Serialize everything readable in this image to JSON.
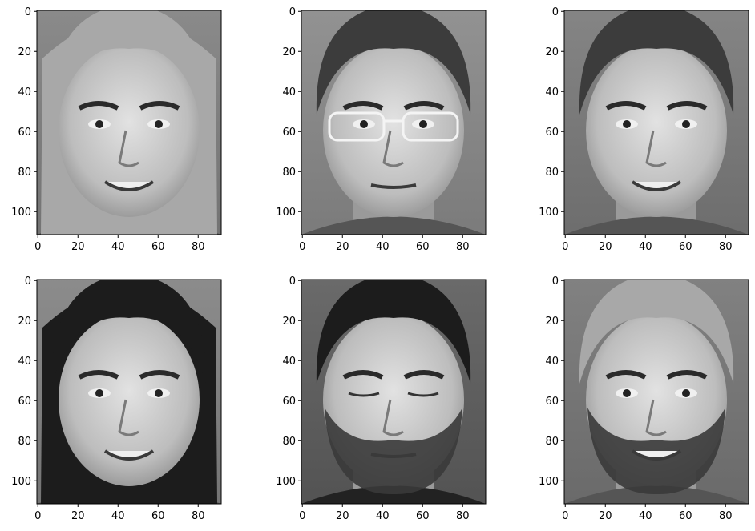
{
  "figure": {
    "panels": [
      {
        "id": "face-1",
        "hair": "long-light",
        "glasses": false,
        "beard": false,
        "smile": true,
        "eyes": "open",
        "tone": "#7a7a7a"
      },
      {
        "id": "face-2",
        "hair": "short-curly",
        "glasses": true,
        "beard": false,
        "smile": false,
        "eyes": "open",
        "tone": "#8a8a8a"
      },
      {
        "id": "face-3",
        "hair": "short-spiky",
        "glasses": false,
        "beard": false,
        "smile": true,
        "eyes": "open",
        "tone": "#6f6f6f"
      },
      {
        "id": "face-4",
        "hair": "long-dark",
        "glasses": false,
        "beard": false,
        "smile": true,
        "eyes": "open",
        "tone": "#7d7d7d"
      },
      {
        "id": "face-5",
        "hair": "dark-wavy",
        "glasses": false,
        "beard": true,
        "smile": false,
        "eyes": "closed",
        "tone": "#3a3a3a"
      },
      {
        "id": "face-6",
        "hair": "short-light",
        "glasses": false,
        "beard": true,
        "smile": true,
        "eyes": "open",
        "tone": "#686868"
      }
    ],
    "x_ticks": [
      "0",
      "20",
      "40",
      "60",
      "80"
    ],
    "y_ticks": [
      "0",
      "20",
      "40",
      "60",
      "80",
      "100"
    ],
    "colormap": "gray"
  }
}
